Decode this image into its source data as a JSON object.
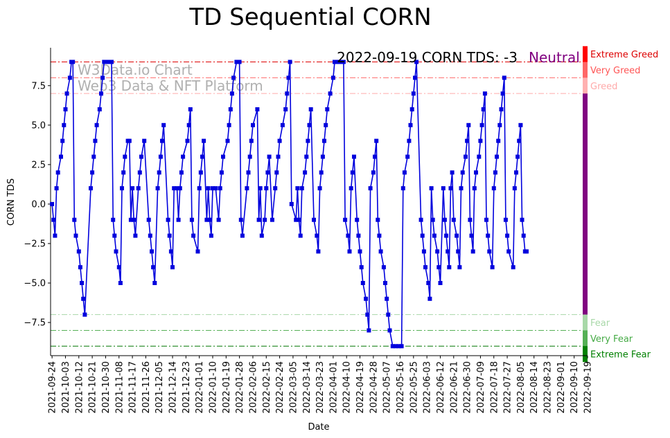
{
  "chart_data": {
    "type": "line",
    "title": "TD Sequential CORN",
    "xlabel": "Date",
    "ylabel": "CORN TDS",
    "ylim": [
      -9.6,
      9.9
    ],
    "xlim": [
      -1,
      360
    ],
    "annotation": "2022-09-19 CORN TDS: -3",
    "status_label": "Neutral",
    "watermark_line1": "W3Data.io Chart",
    "watermark_line2": "Web3 Data & NFT Platform",
    "series_color": "#0000dd",
    "y_ticks": [
      {
        "value": 7.5,
        "label": "7.5"
      },
      {
        "value": 5.0,
        "label": "5.0"
      },
      {
        "value": 2.5,
        "label": "2.5"
      },
      {
        "value": 0.0,
        "label": "0.0"
      },
      {
        "value": -2.5,
        "label": "−2.5"
      },
      {
        "value": -5.0,
        "label": "−5.0"
      },
      {
        "value": -7.5,
        "label": "−7.5"
      }
    ],
    "x_ticks": [
      {
        "idx": 0,
        "label": "2021-09-24"
      },
      {
        "idx": 9,
        "label": "2021-10-03"
      },
      {
        "idx": 18,
        "label": "2021-10-12"
      },
      {
        "idx": 27,
        "label": "2021-10-21"
      },
      {
        "idx": 36,
        "label": "2021-10-30"
      },
      {
        "idx": 45,
        "label": "2021-11-08"
      },
      {
        "idx": 54,
        "label": "2021-11-17"
      },
      {
        "idx": 63,
        "label": "2021-11-26"
      },
      {
        "idx": 72,
        "label": "2021-12-05"
      },
      {
        "idx": 81,
        "label": "2021-12-14"
      },
      {
        "idx": 90,
        "label": "2021-12-23"
      },
      {
        "idx": 99,
        "label": "2022-01-01"
      },
      {
        "idx": 108,
        "label": "2022-01-10"
      },
      {
        "idx": 117,
        "label": "2022-01-19"
      },
      {
        "idx": 126,
        "label": "2022-01-28"
      },
      {
        "idx": 135,
        "label": "2022-02-06"
      },
      {
        "idx": 144,
        "label": "2022-02-15"
      },
      {
        "idx": 153,
        "label": "2022-02-24"
      },
      {
        "idx": 162,
        "label": "2022-03-05"
      },
      {
        "idx": 171,
        "label": "2022-03-14"
      },
      {
        "idx": 180,
        "label": "2022-03-23"
      },
      {
        "idx": 189,
        "label": "2022-04-01"
      },
      {
        "idx": 198,
        "label": "2022-04-10"
      },
      {
        "idx": 207,
        "label": "2022-04-19"
      },
      {
        "idx": 216,
        "label": "2022-04-28"
      },
      {
        "idx": 225,
        "label": "2022-05-07"
      },
      {
        "idx": 234,
        "label": "2022-05-16"
      },
      {
        "idx": 243,
        "label": "2022-05-25"
      },
      {
        "idx": 252,
        "label": "2022-06-03"
      },
      {
        "idx": 261,
        "label": "2022-06-12"
      },
      {
        "idx": 270,
        "label": "2022-06-21"
      },
      {
        "idx": 279,
        "label": "2022-06-30"
      },
      {
        "idx": 288,
        "label": "2022-07-09"
      },
      {
        "idx": 297,
        "label": "2022-07-18"
      },
      {
        "idx": 306,
        "label": "2022-07-27"
      },
      {
        "idx": 315,
        "label": "2022-08-05"
      },
      {
        "idx": 324,
        "label": "2022-08-14"
      },
      {
        "idx": 333,
        "label": "2022-08-23"
      },
      {
        "idx": 342,
        "label": "2022-09-01"
      },
      {
        "idx": 351,
        "label": "2022-09-10"
      },
      {
        "idx": 360,
        "label": "2022-09-19"
      }
    ],
    "threshold_lines": [
      {
        "value": 9,
        "color": "#dd0000"
      },
      {
        "value": 8,
        "color": "#ff6a6a"
      },
      {
        "value": 7,
        "color": "#ffaaaa"
      },
      {
        "value": -7,
        "color": "#a8d8a8"
      },
      {
        "value": -8,
        "color": "#55b055"
      },
      {
        "value": -9,
        "color": "#007700"
      }
    ],
    "zones": [
      {
        "label": "Extreme Greed",
        "from": 9,
        "to": 10,
        "color": "#ff0000",
        "text_color": "#dd0000"
      },
      {
        "label": "Very Greed",
        "from": 8,
        "to": 9,
        "color": "#ff6666",
        "text_color": "#ff5555"
      },
      {
        "label": "Greed",
        "from": 7,
        "to": 8,
        "color": "#ffb0b0",
        "text_color": "#ffaaaa"
      },
      {
        "label": "",
        "from": -7,
        "to": 7,
        "color": "#800080",
        "text_color": "#800080"
      },
      {
        "label": "Fear",
        "from": -8,
        "to": -7,
        "color": "#a8d8a8",
        "text_color": "#a8d8a8"
      },
      {
        "label": "Very Fear",
        "from": -9,
        "to": -8,
        "color": "#55b055",
        "text_color": "#44aa44"
      },
      {
        "label": "Extreme Fear",
        "from": -10,
        "to": -9,
        "color": "#008000",
        "text_color": "#008000"
      }
    ],
    "series": [
      {
        "name": "CORN TDS",
        "start_date": "2021-09-24",
        "end_date": "2022-09-19",
        "segments": [
          [
            0,
            0
          ],
          [
            1,
            -1
          ],
          [
            2,
            -2
          ],
          [
            3,
            1
          ],
          [
            4,
            2
          ],
          [
            6,
            3
          ],
          [
            7,
            4
          ],
          [
            8,
            5
          ],
          [
            9,
            6
          ],
          [
            10,
            7
          ],
          [
            12,
            8
          ],
          [
            13,
            9
          ],
          [
            14,
            9
          ],
          [
            15,
            -1
          ],
          [
            16,
            -2
          ],
          [
            18,
            -3
          ],
          [
            19,
            -4
          ],
          [
            20,
            -5
          ],
          [
            21,
            -6
          ],
          [
            22,
            -7
          ],
          [
            26,
            1
          ],
          [
            27,
            2
          ],
          [
            28,
            3
          ],
          [
            29,
            4
          ],
          [
            30,
            5
          ],
          [
            32,
            6
          ],
          [
            33,
            7
          ],
          [
            34,
            8
          ],
          [
            35,
            9
          ],
          [
            37,
            9
          ],
          [
            38,
            9
          ],
          [
            39,
            9
          ],
          [
            40,
            9
          ],
          [
            41,
            -1
          ],
          [
            42,
            -2
          ],
          [
            43,
            -3
          ],
          [
            45,
            -4
          ],
          [
            46,
            -5
          ],
          [
            47,
            1
          ],
          [
            48,
            2
          ],
          [
            49,
            3
          ],
          [
            51,
            4
          ],
          [
            52,
            4
          ],
          [
            53,
            -1
          ],
          [
            54,
            1
          ],
          [
            55,
            -1
          ],
          [
            56,
            -2
          ],
          [
            58,
            1
          ],
          [
            59,
            2
          ],
          [
            60,
            3
          ],
          [
            62,
            4
          ],
          [
            65,
            -1
          ],
          [
            66,
            -2
          ],
          [
            67,
            -3
          ],
          [
            68,
            -4
          ],
          [
            69,
            -5
          ],
          [
            71,
            1
          ],
          [
            72,
            2
          ],
          [
            73,
            3
          ],
          [
            74,
            4
          ],
          [
            75,
            5
          ],
          [
            78,
            -1
          ],
          [
            79,
            -2
          ],
          [
            80,
            -3
          ],
          [
            81,
            -4
          ],
          [
            82,
            1
          ],
          [
            84,
            1
          ],
          [
            85,
            -1
          ],
          [
            86,
            1
          ],
          [
            87,
            2
          ],
          [
            88,
            3
          ],
          [
            91,
            4
          ],
          [
            92,
            5
          ],
          [
            93,
            6
          ],
          [
            94,
            -1
          ],
          [
            95,
            -2
          ],
          [
            98,
            -3
          ],
          [
            99,
            1
          ],
          [
            100,
            2
          ],
          [
            101,
            3
          ],
          [
            102,
            4
          ],
          [
            104,
            -1
          ],
          [
            105,
            1
          ],
          [
            106,
            -1
          ],
          [
            107,
            -2
          ],
          [
            108,
            1
          ],
          [
            110,
            1
          ],
          [
            112,
            -1
          ],
          [
            113,
            1
          ],
          [
            114,
            2
          ],
          [
            115,
            3
          ],
          [
            118,
            4
          ],
          [
            119,
            5
          ],
          [
            120,
            6
          ],
          [
            121,
            7
          ],
          [
            122,
            8
          ],
          [
            124,
            9
          ],
          [
            125,
            9
          ],
          [
            126,
            9
          ],
          [
            127,
            -1
          ],
          [
            128,
            -2
          ],
          [
            131,
            1
          ],
          [
            132,
            2
          ],
          [
            133,
            3
          ],
          [
            134,
            4
          ],
          [
            135,
            5
          ],
          [
            138,
            6
          ],
          [
            139,
            -1
          ],
          [
            140,
            1
          ],
          [
            141,
            -2
          ],
          [
            143,
            -1
          ],
          [
            144,
            1
          ],
          [
            145,
            2
          ],
          [
            146,
            3
          ],
          [
            148,
            -1
          ],
          [
            150,
            1
          ],
          [
            151,
            2
          ],
          [
            152,
            3
          ],
          [
            153,
            4
          ],
          [
            155,
            5
          ],
          [
            157,
            6
          ],
          [
            158,
            7
          ],
          [
            159,
            8
          ],
          [
            160,
            9
          ],
          [
            161,
            0
          ],
          [
            164,
            -1
          ],
          [
            165,
            1
          ],
          [
            166,
            -1
          ],
          [
            167,
            -2
          ],
          [
            168,
            1
          ],
          [
            170,
            2
          ],
          [
            171,
            3
          ],
          [
            172,
            4
          ],
          [
            173,
            5
          ],
          [
            174,
            6
          ],
          [
            176,
            -1
          ],
          [
            178,
            -2
          ],
          [
            179,
            -3
          ],
          [
            180,
            1
          ],
          [
            181,
            2
          ],
          [
            182,
            3
          ],
          [
            183,
            4
          ],
          [
            184,
            5
          ],
          [
            185,
            6
          ],
          [
            187,
            7
          ],
          [
            189,
            8
          ],
          [
            190,
            9
          ],
          [
            192,
            9
          ],
          [
            194,
            9
          ],
          [
            196,
            9
          ],
          [
            197,
            -1
          ],
          [
            199,
            -2
          ],
          [
            200,
            -3
          ],
          [
            201,
            1
          ],
          [
            202,
            2
          ],
          [
            203,
            3
          ],
          [
            205,
            -1
          ],
          [
            206,
            -2
          ],
          [
            207,
            -3
          ],
          [
            208,
            -4
          ],
          [
            209,
            -5
          ],
          [
            211,
            -6
          ],
          [
            212,
            -7
          ],
          [
            213,
            -8
          ],
          [
            214,
            1
          ],
          [
            216,
            2
          ],
          [
            217,
            3
          ],
          [
            218,
            4
          ],
          [
            219,
            -1
          ],
          [
            220,
            -2
          ],
          [
            221,
            -3
          ],
          [
            223,
            -4
          ],
          [
            224,
            -5
          ],
          [
            225,
            -6
          ],
          [
            226,
            -7
          ],
          [
            227,
            -8
          ],
          [
            229,
            -9
          ],
          [
            231,
            -9
          ],
          [
            233,
            -9
          ],
          [
            235,
            -9
          ],
          [
            236,
            1
          ],
          [
            237,
            2
          ],
          [
            239,
            3
          ],
          [
            240,
            4
          ],
          [
            241,
            5
          ],
          [
            242,
            6
          ],
          [
            243,
            7
          ],
          [
            244,
            8
          ],
          [
            245,
            9
          ],
          [
            248,
            -1
          ],
          [
            249,
            -2
          ],
          [
            250,
            -3
          ],
          [
            251,
            -4
          ],
          [
            253,
            -5
          ],
          [
            254,
            -6
          ],
          [
            255,
            1
          ],
          [
            256,
            -1
          ],
          [
            257,
            -2
          ],
          [
            259,
            -3
          ],
          [
            260,
            -4
          ],
          [
            261,
            -5
          ],
          [
            263,
            1
          ],
          [
            264,
            -1
          ],
          [
            265,
            -2
          ],
          [
            266,
            -3
          ],
          [
            267,
            -4
          ],
          [
            268,
            1
          ],
          [
            269,
            2
          ],
          [
            270,
            -1
          ],
          [
            272,
            -2
          ],
          [
            273,
            -3
          ],
          [
            274,
            -4
          ],
          [
            275,
            1
          ],
          [
            276,
            2
          ],
          [
            278,
            3
          ],
          [
            279,
            4
          ],
          [
            280,
            5
          ],
          [
            281,
            -1
          ],
          [
            282,
            -2
          ],
          [
            283,
            -3
          ],
          [
            284,
            1
          ],
          [
            285,
            2
          ],
          [
            287,
            3
          ],
          [
            288,
            4
          ],
          [
            289,
            5
          ],
          [
            290,
            6
          ],
          [
            291,
            7
          ],
          [
            292,
            -1
          ],
          [
            293,
            -2
          ],
          [
            294,
            -3
          ],
          [
            296,
            -4
          ],
          [
            297,
            1
          ],
          [
            298,
            2
          ],
          [
            299,
            3
          ],
          [
            300,
            4
          ],
          [
            301,
            5
          ],
          [
            302,
            6
          ],
          [
            303,
            7
          ],
          [
            304,
            8
          ],
          [
            305,
            -1
          ],
          [
            306,
            -2
          ],
          [
            307,
            -3
          ],
          [
            310,
            -4
          ],
          [
            311,
            1
          ],
          [
            312,
            2
          ],
          [
            313,
            3
          ],
          [
            314,
            4
          ],
          [
            315,
            5
          ],
          [
            316,
            -1
          ],
          [
            317,
            -2
          ],
          [
            318,
            -3
          ],
          [
            319,
            -3
          ]
        ]
      }
    ]
  }
}
